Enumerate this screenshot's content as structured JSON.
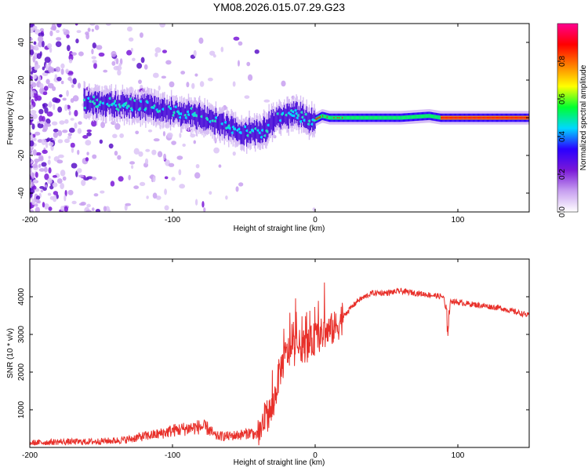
{
  "title": "YM08.2026.015.07.29.G23",
  "chart_data": [
    {
      "type": "heatmap",
      "title": "YM08.2026.015.07.29.G23",
      "xlabel": "Height of straight line (km)",
      "ylabel": "Frequency (Hz)",
      "xlim": [
        -200,
        150
      ],
      "ylim": [
        -50,
        50
      ],
      "xticks": [
        -200,
        -100,
        0,
        100
      ],
      "yticks": [
        -40,
        -20,
        0,
        20,
        40
      ],
      "xtick_labels": [
        "-200",
        "-100",
        "0",
        "100"
      ],
      "ytick_labels": [
        "-40",
        "-20",
        "0",
        "20",
        "40"
      ],
      "colorbar": {
        "label": "Normalized spectral amplitude",
        "range": [
          0,
          1
        ],
        "ticks": [
          0.0,
          0.2,
          0.4,
          0.6,
          0.8
        ],
        "tick_labels": [
          "0.0",
          "0.2",
          "0.4",
          "0.6",
          "0.8"
        ],
        "colors": [
          "#ffffff",
          "#c8a0f0",
          "#7a18d8",
          "#2a00ff",
          "#00d8ff",
          "#00ff30",
          "#ffff00",
          "#ff8000",
          "#ff0000",
          "#ff0090"
        ]
      },
      "ridge": {
        "x": [
          -160,
          -140,
          -120,
          -100,
          -90,
          -80,
          -70,
          -60,
          -50,
          -45,
          -40,
          -35,
          -30,
          -25,
          -20,
          -15,
          -10,
          -5,
          0,
          5,
          10,
          20,
          40,
          60,
          80,
          88,
          95,
          120,
          150
        ],
        "freq": [
          8,
          7,
          6,
          3,
          2,
          0,
          -2,
          -5,
          -8,
          -7,
          -8,
          -6,
          -2,
          0,
          2,
          2,
          2,
          -1,
          -1,
          1,
          0,
          0,
          0,
          0,
          1,
          0,
          0,
          0,
          0
        ]
      }
    },
    {
      "type": "line",
      "title": "",
      "xlabel": "Height of straight line (km)",
      "ylabel": "SNR (10 * v/v)",
      "xlim": [
        -200,
        150
      ],
      "ylim": [
        0,
        5000
      ],
      "xticks": [
        -200,
        -100,
        0,
        100
      ],
      "yticks": [
        1000,
        2000,
        3000,
        4000
      ],
      "xtick_labels": [
        "-200",
        "-100",
        "0",
        "100"
      ],
      "ytick_labels": [
        "1000",
        "2000",
        "3000",
        "4000"
      ],
      "color": "#e8302a",
      "series": [
        {
          "name": "SNR",
          "x": [
            -200,
            -180,
            -160,
            -140,
            -130,
            -120,
            -110,
            -100,
            -90,
            -80,
            -75,
            -70,
            -60,
            -50,
            -45,
            -40,
            -35,
            -30,
            -25,
            -20,
            -15,
            -10,
            -5,
            0,
            5,
            10,
            15,
            20,
            25,
            30,
            40,
            50,
            60,
            70,
            80,
            90,
            93,
            95,
            100,
            110,
            120,
            130,
            140,
            150
          ],
          "y": [
            120,
            150,
            150,
            180,
            220,
            300,
            350,
            450,
            500,
            550,
            500,
            300,
            300,
            350,
            400,
            300,
            800,
            1000,
            2000,
            2500,
            2600,
            2700,
            2700,
            2900,
            3000,
            3100,
            3200,
            3500,
            3700,
            3900,
            4100,
            4100,
            4150,
            4100,
            4050,
            4000,
            3200,
            3900,
            3850,
            3800,
            3750,
            3700,
            3600,
            3500
          ]
        }
      ]
    }
  ]
}
